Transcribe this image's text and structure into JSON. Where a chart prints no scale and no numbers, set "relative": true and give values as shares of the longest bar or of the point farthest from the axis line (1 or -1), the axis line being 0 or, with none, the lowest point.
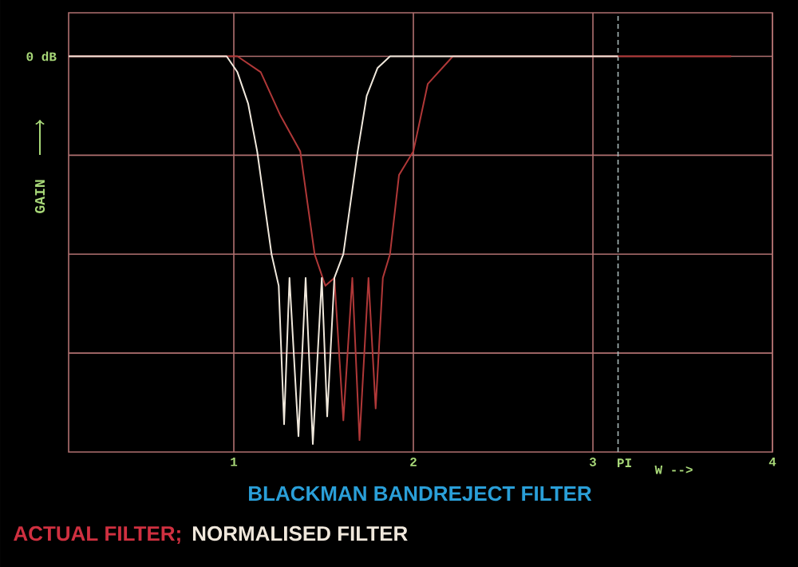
{
  "chart_data": {
    "type": "line",
    "title": "BLACKMAN BANDREJECT FILTER",
    "xlabel": "W -->",
    "ylabel": "GAIN",
    "relative": true,
    "xlim": [
      0.08,
      4
    ],
    "xticks": [
      1,
      2,
      3,
      4
    ],
    "grid": true,
    "legend": "bottom",
    "annotations": [
      "0 dB"
    ],
    "ref_lines": [
      {
        "axis": "x",
        "value": 3.14,
        "label": "PI",
        "color": "#a8b8b8",
        "line_style": "dashed"
      }
    ],
    "series": [
      {
        "name": "ACTUAL FILTER;",
        "color": "#b03838",
        "x": [
          0.08,
          1.02,
          1.15,
          1.26,
          1.37,
          1.45,
          1.51,
          1.56,
          1.61,
          1.66,
          1.7,
          1.75,
          1.79,
          1.83,
          1.87,
          1.92,
          2.0,
          2.08,
          2.22,
          3.77
        ],
        "values": [
          1,
          1,
          0.96,
          0.85,
          0.76,
          0.5,
          0.42,
          0.44,
          0.08,
          0.44,
          0.03,
          0.44,
          0.11,
          0.44,
          0.5,
          0.7,
          0.76,
          0.93,
          1,
          1
        ]
      },
      {
        "name": "NORMALISED FILTER",
        "color": "#f0e8dc",
        "x": [
          0.08,
          0.96,
          1.02,
          1.08,
          1.13,
          1.21,
          1.25,
          1.28,
          1.31,
          1.36,
          1.4,
          1.44,
          1.49,
          1.52,
          1.56,
          1.61,
          1.69,
          1.74,
          1.8,
          1.87,
          3.14
        ],
        "values": [
          1,
          1,
          0.96,
          0.88,
          0.76,
          0.5,
          0.42,
          0.07,
          0.44,
          0.04,
          0.44,
          0.02,
          0.44,
          0.09,
          0.44,
          0.5,
          0.76,
          0.9,
          0.97,
          1,
          1
        ]
      }
    ]
  }
}
